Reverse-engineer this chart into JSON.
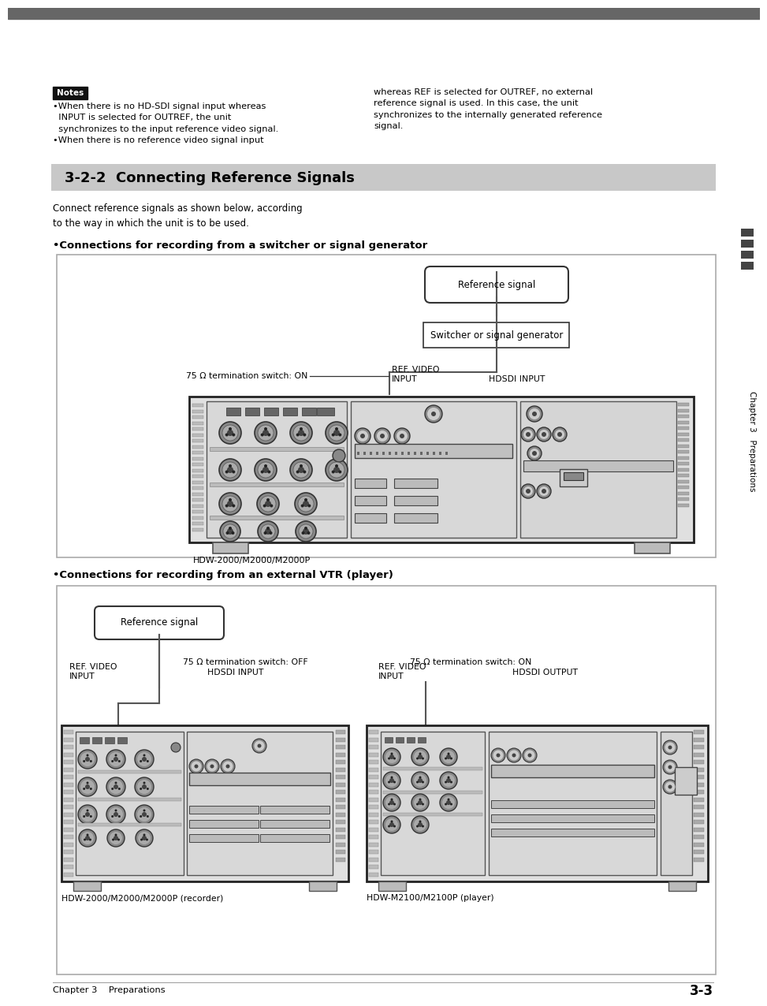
{
  "page_bg": "#ffffff",
  "top_bar_color": "#555555",
  "notes_label": "Notes",
  "notes_text_left": "•When there is no HD-SDI signal input whereas\n  INPUT is selected for OUTREF, the unit\n  synchronizes to the input reference video signal.\n•When there is no reference video signal input",
  "notes_text_right": "whereas REF is selected for OUTREF, no external\nreference signal is used. In this case, the unit\nsynchronizes to the internally generated reference\nsignal.",
  "section_header_text": "3-2-2  Connecting Reference Signals",
  "section_intro": "Connect reference signals as shown below, according\nto the way in which the unit is to be used.",
  "subsection1_title": "•Connections for recording from a switcher or signal generator",
  "subsection2_title": "•Connections for recording from an external VTR (player)",
  "footer_text_left": "Chapter 3    Preparations",
  "footer_text_right": "3-3",
  "sidebar_text": "Chapter 3   Preparations",
  "d1_ref_label": "Reference signal",
  "d1_sw_label": "Switcher or signal generator",
  "d1_75ohm": "75 Ω termination switch: ON",
  "d1_ref_video": "REF. VIDEO\nINPUT",
  "d1_hdsdi": "HDSDI INPUT",
  "d1_device": "HDW-2000/M2000/M2000P",
  "d2_ref_label": "Reference signal",
  "d2_75ohm_off": "75 Ω termination switch: OFF",
  "d2_75ohm_on": "75 Ω termination switch: ON",
  "d2_ref_video_l": "REF. VIDEO\nINPUT",
  "d2_hdsdi_l": "HDSDI INPUT",
  "d2_ref_video_r": "REF. VIDEO\nINPUT",
  "d2_hdsdi_r": "HDSDI OUTPUT",
  "d2_device_l": "HDW-2000/M2000/M2000P (recorder)",
  "d2_device_r": "HDW-M2100/M2100P (player)"
}
